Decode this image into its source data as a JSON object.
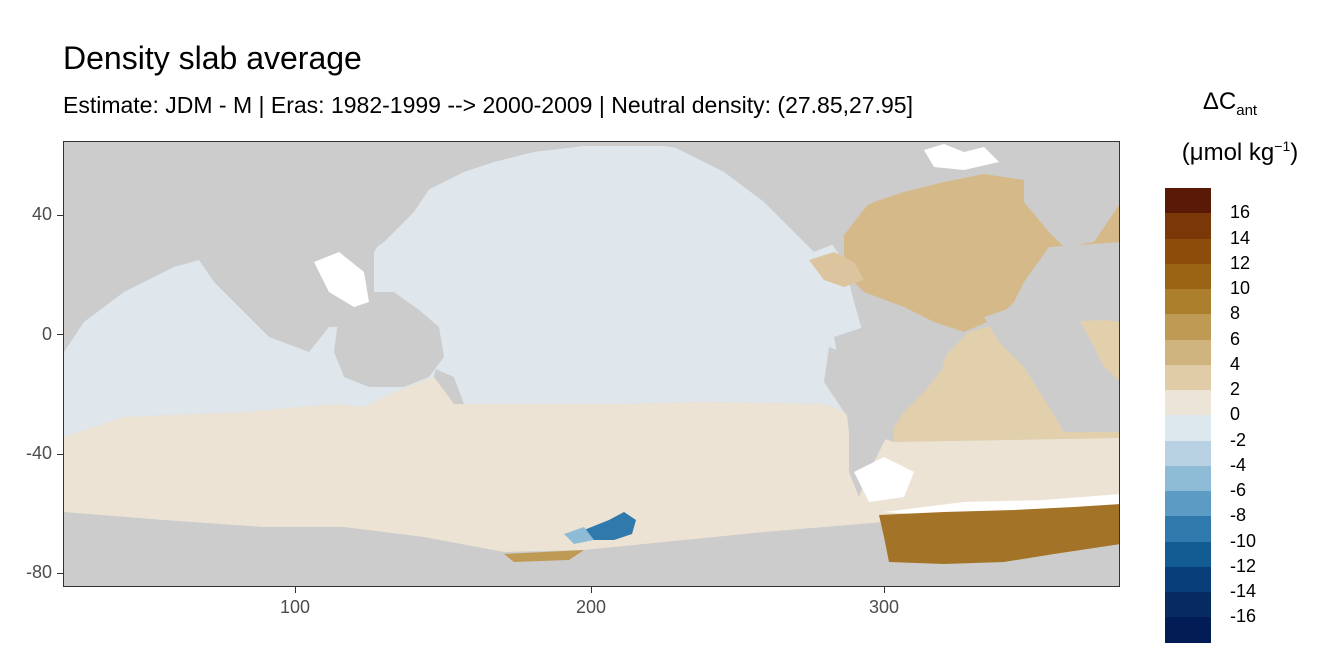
{
  "title": "Density slab average",
  "subtitle": "Estimate: JDM - M | Eras: 1982-1999 --> 2000-2009 | Neutral density: (27.85,27.95]",
  "axes": {
    "x_ticks": [
      "100",
      "200",
      "300"
    ],
    "x_values": [
      100,
      200,
      300
    ],
    "x_range": [
      20,
      380
    ],
    "y_ticks": [
      "40",
      "0",
      "-40",
      "-80"
    ],
    "y_values": [
      40,
      0,
      -40,
      -80
    ],
    "y_range": [
      -85,
      65
    ]
  },
  "legend": {
    "title_main": "ΔC",
    "title_sub": "ant",
    "unit_prefix": "(μmol kg",
    "unit_sup": "−1",
    "unit_suffix": ")",
    "labels": [
      "16",
      "14",
      "12",
      "10",
      "8",
      "6",
      "4",
      "2",
      "0",
      "-2",
      "-4",
      "-6",
      "-8",
      "-10",
      "-12",
      "-14",
      "-16"
    ],
    "colors": [
      "#5a1806",
      "#7a3708",
      "#8c4d0a",
      "#9b6414",
      "#ab7f2c",
      "#bf9a55",
      "#d0b47f",
      "#e0cca6",
      "#ebe4d7",
      "#dce7ee",
      "#b8d2e3",
      "#8ebbd6",
      "#5c9cc4",
      "#2f79ad",
      "#135c93",
      "#083f7a",
      "#062b63",
      "#021d55"
    ]
  },
  "colors": {
    "land": "#cccccc",
    "no_data": "#ffffff",
    "pacific_indian": "#dfe7ec",
    "southern_ocean": "#ece3d4",
    "atlantic": "#dcc59e",
    "atlantic_north": "#d5b988",
    "atlantic_south": "#e2cfac",
    "weddell": "#a37328",
    "blue_patch": "#2f79ad"
  },
  "map_data": {
    "type": "gridded-field",
    "variable": "ΔCant",
    "regions": [
      {
        "region": "Pacific / Indian Ocean",
        "approx_value_range": [
          -2,
          0
        ]
      },
      {
        "region": "Southern Ocean belt",
        "approx_value_range": [
          0,
          2
        ]
      },
      {
        "region": "North Atlantic",
        "approx_value_range": [
          4,
          6
        ]
      },
      {
        "region": "South Atlantic",
        "approx_value_range": [
          2,
          4
        ]
      },
      {
        "region": "Weddell Sea shelf",
        "approx_value_range": [
          10,
          14
        ]
      },
      {
        "region": "Ross Sea patch",
        "approx_value_range": [
          -10,
          -4
        ]
      }
    ]
  }
}
